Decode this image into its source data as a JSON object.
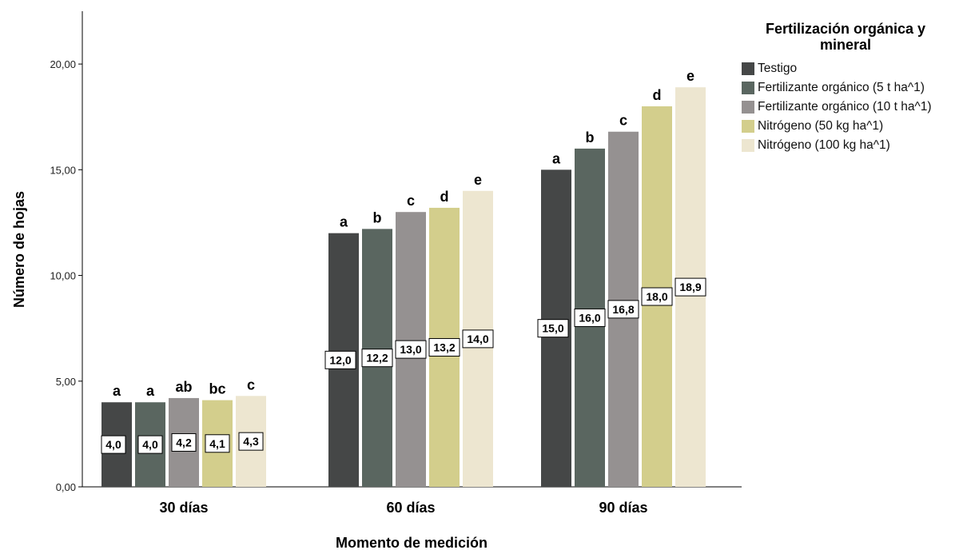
{
  "chart_data": {
    "type": "bar",
    "xlabel": "Momento de medición",
    "ylabel": "Número de hojas",
    "ylim": [
      0,
      22.5
    ],
    "yticks": [
      "0,00",
      "5,00",
      "10,00",
      "15,00",
      "20,00"
    ],
    "ytick_values": [
      0,
      5,
      10,
      15,
      20
    ],
    "grid": false,
    "legend_placement": "top-right",
    "legend_title": "Fertilización orgánica y mineral",
    "categories": [
      "30 días",
      "60 días",
      "90 días"
    ],
    "series": [
      {
        "name": "Testigo",
        "color": "#454747",
        "values": [
          4.0,
          12.0,
          15.0
        ],
        "labels": [
          "4,0",
          "12,0",
          "15,0"
        ],
        "letters": [
          "a",
          "a",
          "a"
        ]
      },
      {
        "name": "Fertilizante orgánico (5 t ha^1)",
        "color": "#5a6660",
        "values": [
          4.0,
          12.2,
          16.0
        ],
        "labels": [
          "4,0",
          "12,2",
          "16,0"
        ],
        "letters": [
          "a",
          "b",
          "b"
        ]
      },
      {
        "name": "Fertilizante orgánico (10 t ha^1)",
        "color": "#959191",
        "values": [
          4.2,
          13.0,
          16.8
        ],
        "labels": [
          "4,2",
          "13,0",
          "16,8"
        ],
        "letters": [
          "ab",
          "c",
          "c"
        ]
      },
      {
        "name": "Nitrógeno (50 kg ha^1)",
        "color": "#d3ce8c",
        "values": [
          4.1,
          13.2,
          18.0
        ],
        "labels": [
          "4,1",
          "13,2",
          "18,0"
        ],
        "letters": [
          "bc",
          "d",
          "d"
        ]
      },
      {
        "name": "Nitrógeno (100 kg ha^1)",
        "color": "#ede6d0",
        "values": [
          4.3,
          14.0,
          18.9
        ],
        "labels": [
          "4,3",
          "14,0",
          "18,9"
        ],
        "letters": [
          "c",
          "e",
          "e"
        ]
      }
    ]
  }
}
